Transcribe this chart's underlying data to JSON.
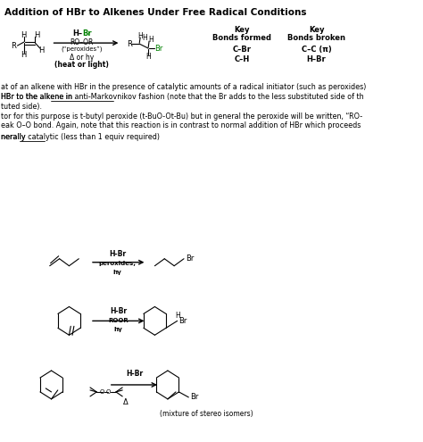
{
  "title": "Addition of HBr to Alkenes Under Free Radical Conditions",
  "bg_color": "#ffffff",
  "text_color": "#000000",
  "green_color": "#008000",
  "body_fontsize": 6.0,
  "small_fontsize": 5.5,
  "title_fontsize": 7.5,
  "reagent1_h": "H–",
  "reagent1_br": "Br",
  "reagent1_line2": "RO–OR",
  "reagent1_line3": "(“peroxides”)",
  "reagent1_line4": "Δ or hγ",
  "reagent1_line5": "(heat or light)",
  "key_formed_1": "Key",
  "key_formed_2": "Bonds formed",
  "key_formed_3": "C–Br",
  "key_formed_4": "C–H",
  "key_broken_1": "Key",
  "key_broken_2": "Bonds broken",
  "key_broken_3": "C–C (π)",
  "key_broken_4": "H–Br",
  "text1": "at of an alkene with HBr in the presence of catalytic amounts of a radical initiator (such as peroxides)",
  "text2a": "HBr to the alkene in ",
  "text2b": "anti-Markovnikov fashion",
  "text2c": " (note that the Br adds to the less substituted side of th",
  "text3": "tuted side).",
  "text4": "tor for this purpose is t-butyl peroxide (t-BuO-Ot-Bu) but in general the peroxide will be written, “RO-",
  "text5": "eak O–O bond. Again, note that this reaction is in contrast to normal addition of HBr which proceeds",
  "text6a": "nerally ",
  "text6b": "catalytic",
  "text6c": " (less than 1 equiv required)",
  "rxn1_above": "H-Br",
  "rxn1_below1": "peroxides,",
  "rxn1_below2": "hγ",
  "rxn2_above": "H-Br",
  "rxn2_below1": "ROOR",
  "rxn2_below2": "hγ",
  "rxn3_above": "H-Br",
  "rxn3_delta": "Δ",
  "stereo_note": "(mixture of stereo isomers)"
}
